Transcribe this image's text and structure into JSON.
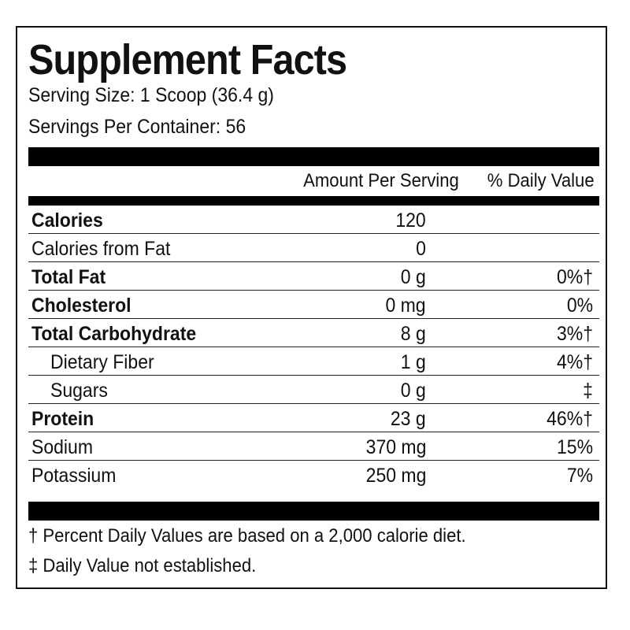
{
  "label": {
    "title": "Supplement Facts",
    "serving_size": "Serving Size: 1 Scoop (36.4 g)",
    "servings_per_container": "Servings Per Container: 56",
    "header": {
      "amount": "Amount Per Serving",
      "daily_value": "% Daily Value"
    },
    "rows": [
      {
        "name": "Calories",
        "amount": "120",
        "dv": "",
        "bold": true,
        "indent": false
      },
      {
        "name": "Calories from Fat",
        "amount": "0",
        "dv": "",
        "bold": false,
        "indent": false
      },
      {
        "name": "Total Fat",
        "amount": "0 g",
        "dv": "0%†",
        "bold": true,
        "indent": false
      },
      {
        "name": "Cholesterol",
        "amount": "0 mg",
        "dv": "0%",
        "bold": true,
        "indent": false
      },
      {
        "name": "Total Carbohydrate",
        "amount": "8 g",
        "dv": "3%†",
        "bold": true,
        "indent": false
      },
      {
        "name": "Dietary Fiber",
        "amount": "1 g",
        "dv": "4%†",
        "bold": false,
        "indent": true
      },
      {
        "name": "Sugars",
        "amount": "0 g",
        "dv": "‡",
        "bold": false,
        "indent": true
      },
      {
        "name": "Protein",
        "amount": "23 g",
        "dv": "46%†",
        "bold": true,
        "indent": false
      },
      {
        "name": "Sodium",
        "amount": "370 mg",
        "dv": "15%",
        "bold": false,
        "indent": false
      },
      {
        "name": "Potassium",
        "amount": "250 mg",
        "dv": "7%",
        "bold": false,
        "indent": false
      }
    ],
    "footnotes": [
      "† Percent Daily Values are based on a 2,000 calorie diet.",
      "‡ Daily Value not established."
    ]
  }
}
